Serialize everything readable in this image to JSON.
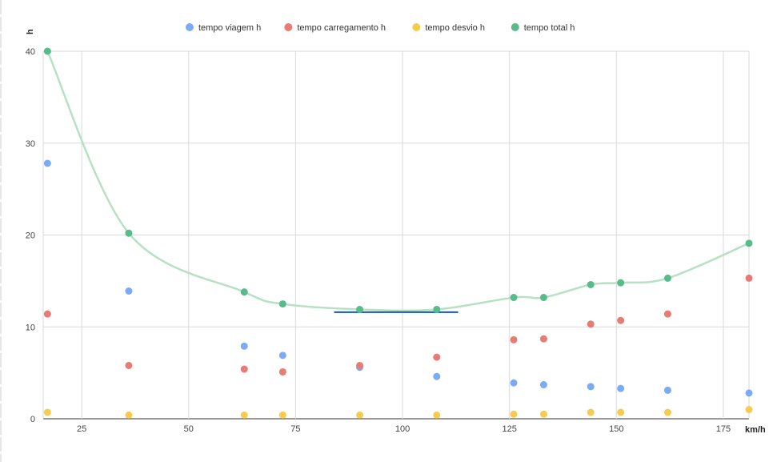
{
  "chart_data": {
    "type": "scatter",
    "title": "",
    "xlabel": "km/h",
    "ylabel": "h",
    "xlim": [
      16,
      181
    ],
    "ylim": [
      0,
      40
    ],
    "xticks": [
      25,
      50,
      75,
      100,
      125,
      150,
      175
    ],
    "yticks": [
      0,
      10,
      20,
      30,
      40
    ],
    "grid": true,
    "legend_position": "top",
    "series": [
      {
        "name": "tempo viagem h",
        "color": "#7baaf7",
        "points": [
          [
            17,
            27.8
          ],
          [
            36,
            13.9
          ],
          [
            63,
            7.9
          ],
          [
            72,
            6.9
          ],
          [
            90,
            5.6
          ],
          [
            108,
            4.6
          ],
          [
            126,
            3.9
          ],
          [
            133,
            3.7
          ],
          [
            144,
            3.5
          ],
          [
            151,
            3.3
          ],
          [
            162,
            3.1
          ],
          [
            181,
            2.8
          ]
        ]
      },
      {
        "name": "tempo carregamento h",
        "color": "#e67c73",
        "points": [
          [
            17,
            11.4
          ],
          [
            36,
            5.8
          ],
          [
            63,
            5.4
          ],
          [
            72,
            5.1
          ],
          [
            90,
            5.8
          ],
          [
            108,
            6.7
          ],
          [
            126,
            8.6
          ],
          [
            133,
            8.7
          ],
          [
            144,
            10.3
          ],
          [
            151,
            10.7
          ],
          [
            162,
            11.4
          ],
          [
            181,
            15.3
          ]
        ]
      },
      {
        "name": "tempo desvio h",
        "color": "#f7cb4d",
        "points": [
          [
            17,
            0.7
          ],
          [
            36,
            0.4
          ],
          [
            63,
            0.4
          ],
          [
            72,
            0.4
          ],
          [
            90,
            0.4
          ],
          [
            108,
            0.4
          ],
          [
            126,
            0.5
          ],
          [
            133,
            0.5
          ],
          [
            144,
            0.7
          ],
          [
            151,
            0.7
          ],
          [
            162,
            0.7
          ],
          [
            181,
            1.0
          ]
        ]
      },
      {
        "name": "tempo total h",
        "color": "#57bb8a",
        "trendline_color": "#b7e1c4",
        "points": [
          [
            17,
            40
          ],
          [
            36,
            20.2
          ],
          [
            63,
            13.8
          ],
          [
            72,
            12.5
          ],
          [
            90,
            11.9
          ],
          [
            108,
            11.9
          ],
          [
            126,
            13.2
          ],
          [
            133,
            13.2
          ],
          [
            144,
            14.6
          ],
          [
            151,
            14.8
          ],
          [
            162,
            15.3
          ],
          [
            181,
            19.1
          ]
        ]
      }
    ],
    "annotation_line": {
      "x1": 84,
      "x2": 113,
      "y": 11.6,
      "color": "#1155cc"
    }
  }
}
